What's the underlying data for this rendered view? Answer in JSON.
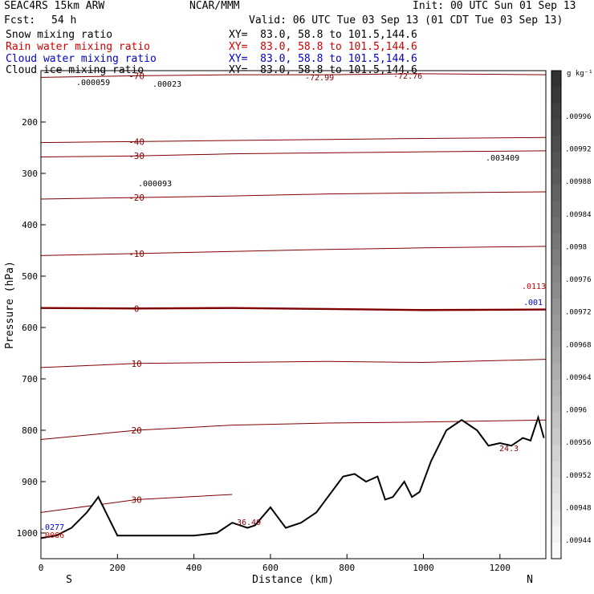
{
  "header": {
    "model": "SEAC4RS 15km ARW",
    "org": "NCAR/MMM",
    "init": "Init: 00 UTC Sun 01 Sep 13",
    "fcst_label": "Fcst:",
    "fcst_value": "54 h",
    "valid": "Valid: 06 UTC Tue 03 Sep 13 (01 CDT Tue 03 Sep 13)"
  },
  "fields": [
    {
      "name": "Snow mixing ratio",
      "xy": "XY=  83.0, 58.8 to 101.5,144.6",
      "color": "#000000"
    },
    {
      "name": "Rain water mixing ratio",
      "xy": "XY=  83.0, 58.8 to 101.5,144.6",
      "color": "#d00000"
    },
    {
      "name": "Cloud water mixing ratio",
      "xy": "XY=  83.0, 58.8 to 101.5,144.6",
      "color": "#0000cc"
    },
    {
      "name": "Cloud ice mixing ratio",
      "xy": "XY=  83.0, 58.8 to 101.5,144.6",
      "color": "#000000"
    }
  ],
  "chart_data": {
    "type": "line",
    "xlabel": "Distance (km)",
    "ylabel": "Pressure (hPa)",
    "xlim": [
      0,
      1320
    ],
    "ylim": [
      1050,
      100
    ],
    "x_ticks": [
      0,
      200,
      400,
      600,
      800,
      1000,
      1200
    ],
    "y_ticks": [
      200,
      300,
      400,
      500,
      600,
      700,
      800,
      900,
      1000
    ],
    "x_end_labels": {
      "left": "S",
      "right": "N"
    },
    "temperature_contours": [
      {
        "label": "-70",
        "p": [
          113,
          110,
          108,
          108,
          106,
          108
        ]
      },
      {
        "label": "-40",
        "p": [
          240,
          238,
          236,
          234,
          232,
          230
        ]
      },
      {
        "label": "-30",
        "p": [
          268,
          266,
          262,
          260,
          258,
          256
        ]
      },
      {
        "label": "-20",
        "p": [
          350,
          347,
          344,
          340,
          338,
          336
        ]
      },
      {
        "label": "-10",
        "p": [
          460,
          456,
          452,
          448,
          445,
          442
        ]
      },
      {
        "label": "0",
        "p": [
          562,
          563,
          562,
          564,
          566,
          565
        ],
        "emphasis": true
      },
      {
        "label": "10",
        "p": [
          678,
          670,
          668,
          666,
          668,
          662
        ]
      },
      {
        "label": "20",
        "p": [
          818,
          800,
          790,
          786,
          784,
          780
        ]
      },
      {
        "label": "30",
        "p": [
          960,
          935,
          925,
          0,
          0,
          0
        ]
      }
    ],
    "temperature_contour_x": [
      0,
      250,
      500,
      750,
      1000,
      1320
    ],
    "terrain": {
      "x": [
        0,
        40,
        80,
        120,
        150,
        170,
        200,
        300,
        400,
        460,
        500,
        540,
        560,
        600,
        640,
        680,
        720,
        760,
        790,
        820,
        850,
        880,
        900,
        920,
        950,
        970,
        990,
        1020,
        1060,
        1100,
        1140,
        1170,
        1200,
        1230,
        1260,
        1280,
        1300,
        1315
      ],
      "p": [
        1010,
        1005,
        990,
        960,
        930,
        960,
        1005,
        1005,
        1005,
        1000,
        980,
        990,
        985,
        950,
        990,
        980,
        960,
        920,
        890,
        885,
        900,
        890,
        935,
        930,
        900,
        930,
        920,
        860,
        800,
        780,
        800,
        830,
        825,
        830,
        815,
        820,
        775,
        815
      ]
    },
    "max_labels": [
      {
        "text": ".000059",
        "color": "#000000"
      },
      {
        "text": ".00023",
        "color": "#000000"
      },
      {
        "text": "-72.99",
        "color": "#800000"
      },
      {
        "text": "-72.76",
        "color": "#800000"
      },
      {
        "text": ".000093",
        "color": "#000000"
      },
      {
        "text": ".003409",
        "color": "#000000"
      },
      {
        "text": ".0113",
        "color": "#d00000"
      },
      {
        "text": ".001",
        "color": "#0000cc"
      },
      {
        "text": "24.3",
        "color": "#800000"
      },
      {
        "text": "36.49",
        "color": "#800000"
      },
      {
        "text": ".0277",
        "color": "#0000cc"
      },
      {
        "text": ".0066",
        "color": "#d00000"
      }
    ],
    "colorbar": {
      "unit": "g kg⁻¹",
      "labels": [
        ".00996",
        ".00992",
        ".00988",
        ".00984",
        ".0098",
        ".00976",
        ".00972",
        ".00968",
        ".00964",
        ".0096",
        ".00956",
        ".00952",
        ".00948",
        ".00944"
      ]
    },
    "contour_color": "#800000",
    "terrain_color": "#000000"
  }
}
